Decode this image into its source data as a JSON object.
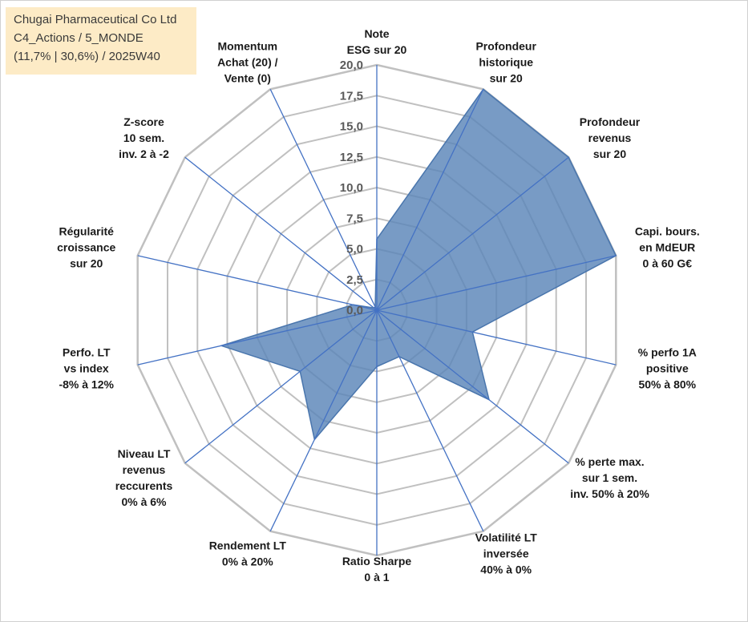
{
  "title_box": {
    "line1": "Chugai Pharmaceutical Co Ltd",
    "line2": "C4_Actions / 5_MONDE",
    "line3": "(11,7% | 30,6%) / 2025W40"
  },
  "chart_data": {
    "type": "radar",
    "title": "",
    "range": [
      0,
      20
    ],
    "tick_step": 2.5,
    "tick_labels": [
      "0,0",
      "2,5",
      "5,0",
      "7,5",
      "10,0",
      "12,5",
      "15,0",
      "17,5",
      "20,0"
    ],
    "grid": true,
    "axes": [
      {
        "label": [
          "Note",
          "ESG sur 20"
        ],
        "value": 5.8
      },
      {
        "label": [
          "Profondeur",
          "historique",
          "sur 20"
        ],
        "value": 20.0
      },
      {
        "label": [
          "Profondeur",
          "revenus",
          "sur 20"
        ],
        "value": 20.0
      },
      {
        "label": [
          "Capi. bours.",
          "en MdEUR",
          "0 à 60 G€"
        ],
        "value": 20.0
      },
      {
        "label": [
          "% perfo 1A",
          "positive",
          "50% à 80%"
        ],
        "value": 8.0
      },
      {
        "label": [
          "% perte max.",
          "sur 1 sem.",
          "inv. 50% à 20%"
        ],
        "value": 11.7
      },
      {
        "label": [
          "Volatilité LT",
          "inversée",
          "40% à 0%"
        ],
        "value": 4.2
      },
      {
        "label": [
          "Ratio Sharpe",
          "0 à 1"
        ],
        "value": 4.6
      },
      {
        "label": [
          "Rendement LT",
          "0% à 20%"
        ],
        "value": 11.7
      },
      {
        "label": [
          "Niveau LT",
          "revenus",
          "reccurents",
          "0% à 6%"
        ],
        "value": 8.0
      },
      {
        "label": [
          "Perfo. LT",
          "vs index",
          "-8% à 12%"
        ],
        "value": 13.0
      },
      {
        "label": [
          "Régularité",
          "croissance",
          "sur 20"
        ],
        "value": 2.0
      },
      {
        "label": [
          "Z-score",
          "10 sem.",
          "inv. 2 à -2"
        ],
        "value": 0.3
      },
      {
        "label": [
          "Momentum",
          "Achat (20) /",
          "Vente (0)"
        ],
        "value": 0.3
      }
    ],
    "colors": {
      "fill": "#5a85b8",
      "stroke": "#4a76ad",
      "grid": "#c0c0c0",
      "spoke": "#4472c4"
    }
  }
}
